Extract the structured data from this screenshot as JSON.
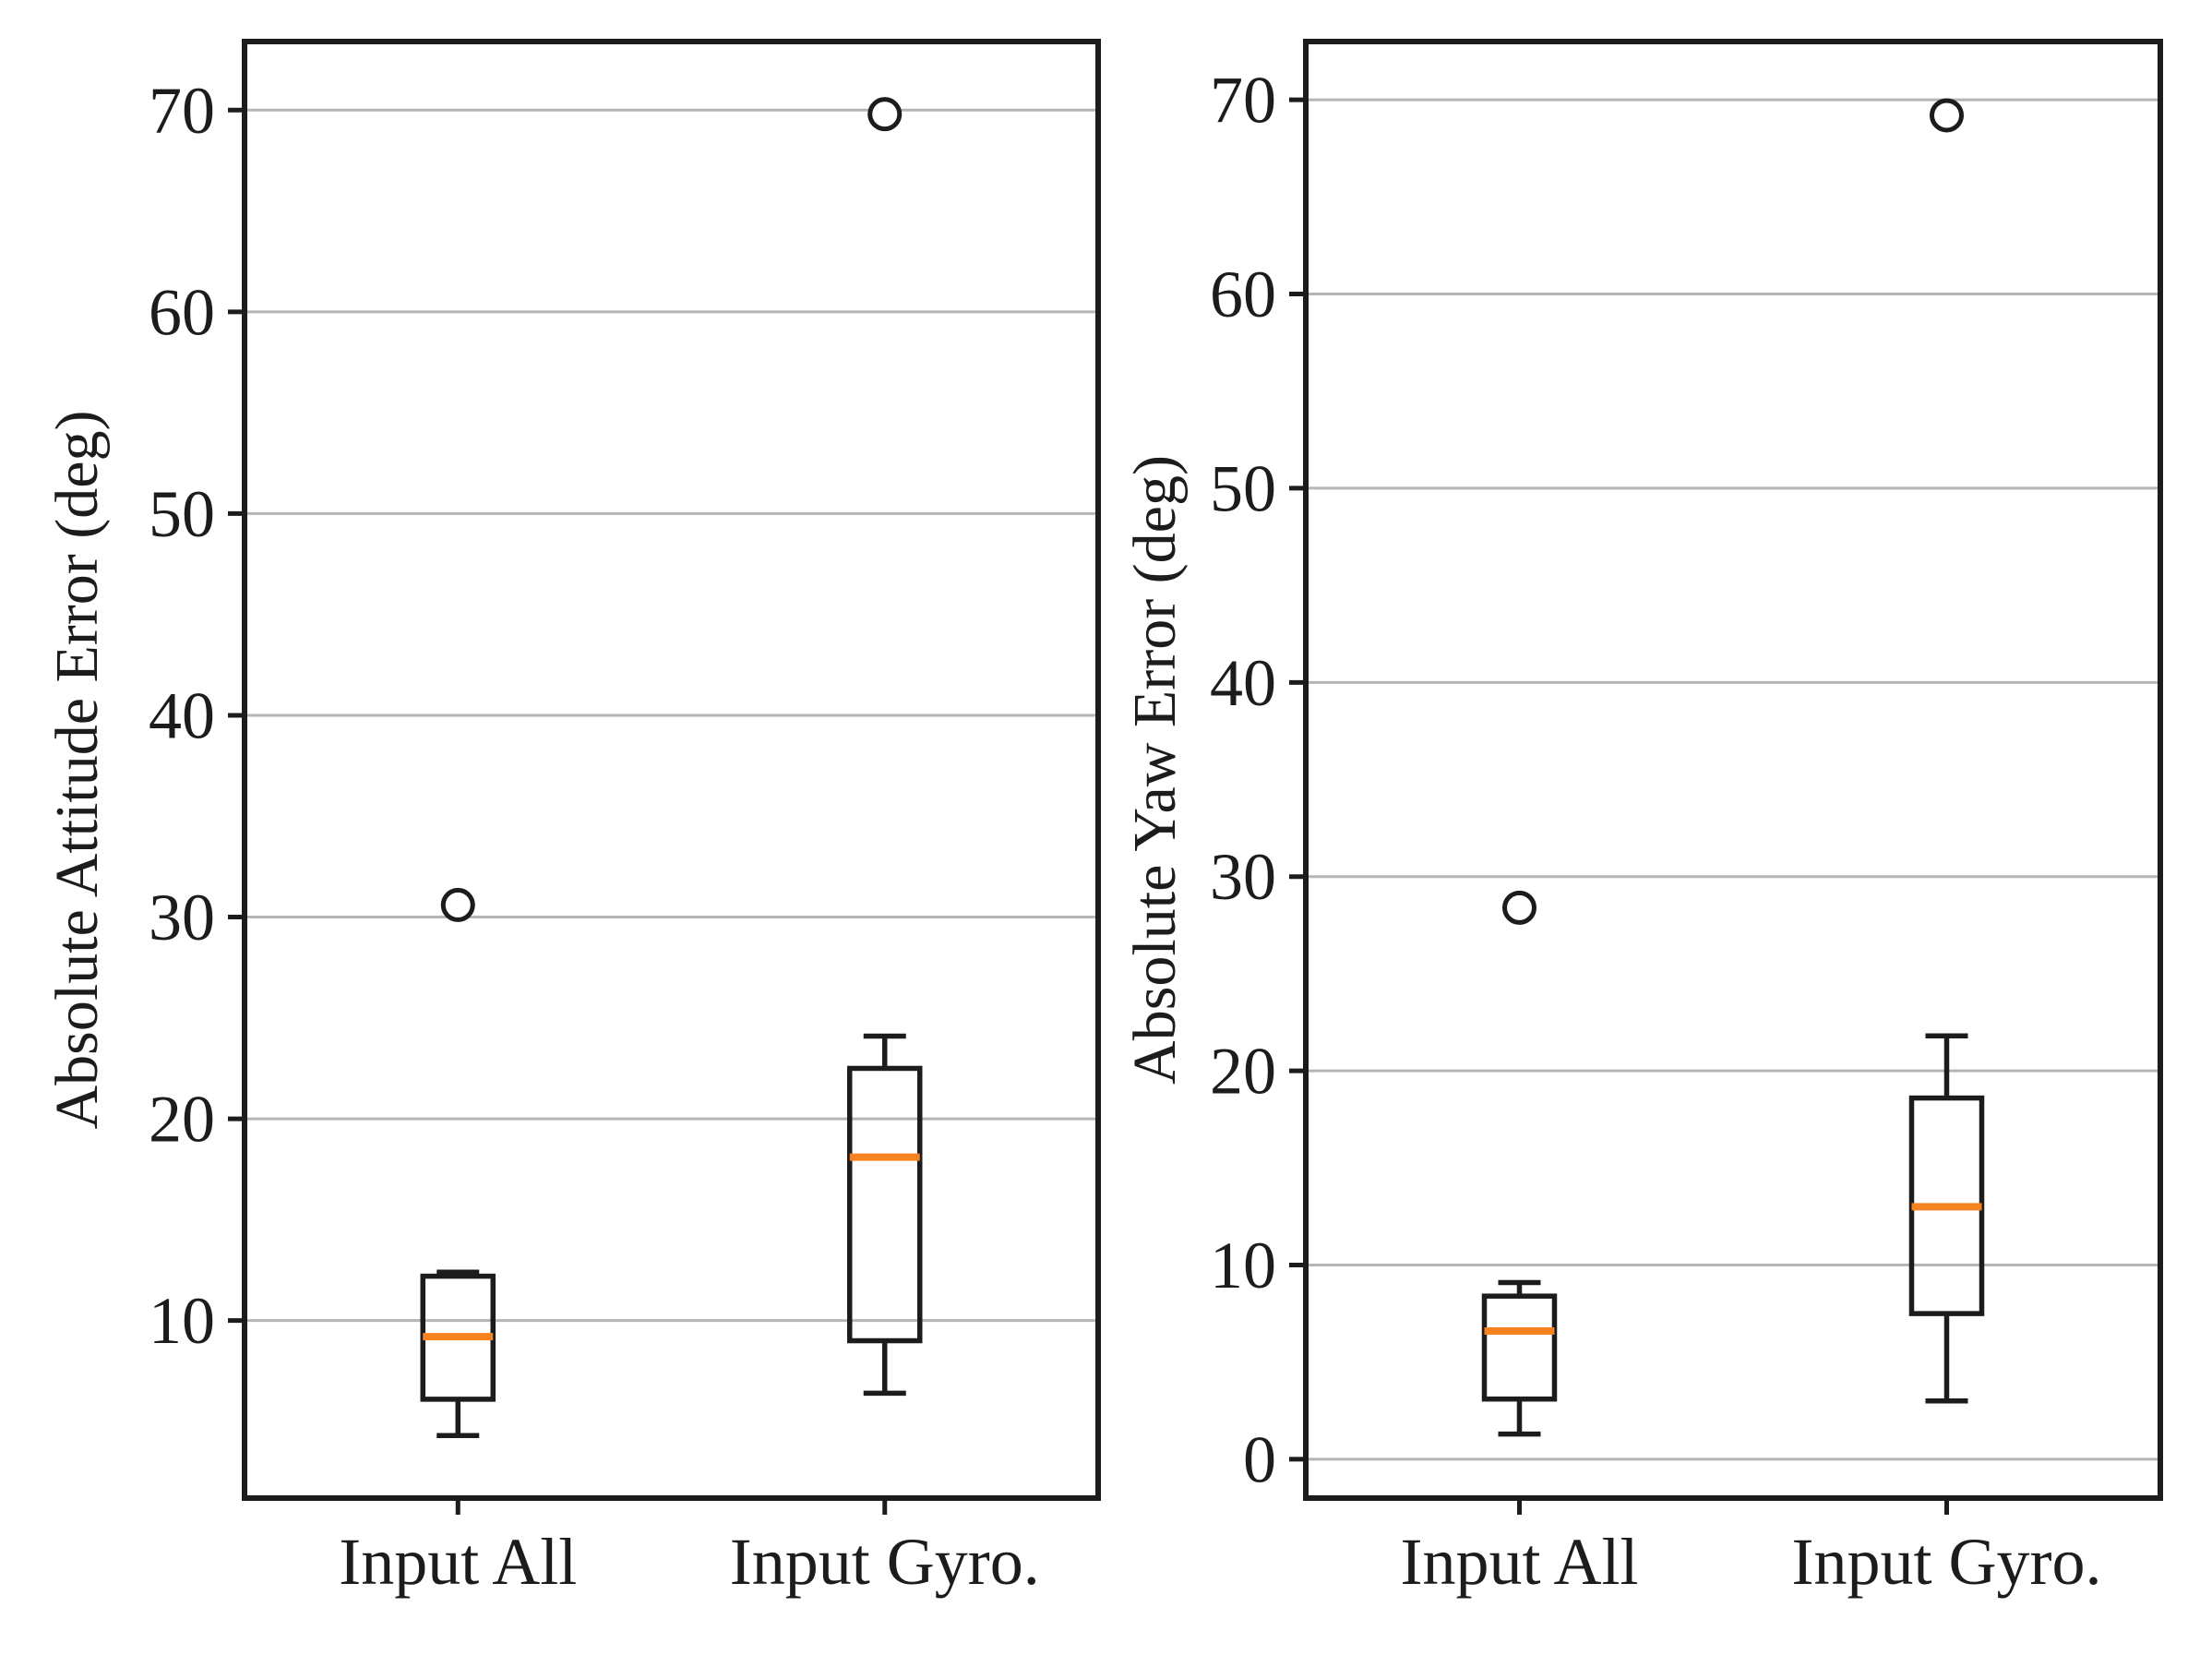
{
  "figure": {
    "background": "#ffffff",
    "axis_color": "#1c1c1c",
    "grid_color": "#b5b5b5",
    "box_fill": "none",
    "outlier_fill": "#ffffff"
  },
  "chart_data": [
    {
      "type": "box",
      "title": "",
      "ylabel": "Absolute Attitude Error (deg)",
      "xlabel": "",
      "categories": [
        "Input All",
        "Input Gyro."
      ],
      "ylim": [
        1.2,
        73.4
      ],
      "yticks": [
        10,
        20,
        30,
        40,
        50,
        60,
        70
      ],
      "grid": "horizontal",
      "legend": "none",
      "median_color": "#f78320",
      "series": [
        {
          "name": "Input All",
          "whisker_low": 4.3,
          "q1": 6.1,
          "median": 9.2,
          "q3": 12.2,
          "whisker_high": 12.4,
          "outliers": [
            30.6
          ]
        },
        {
          "name": "Input Gyro.",
          "whisker_low": 6.4,
          "q1": 9.0,
          "median": 18.1,
          "q3": 22.5,
          "whisker_high": 24.1,
          "outliers": [
            69.8
          ]
        }
      ]
    },
    {
      "type": "box",
      "title": "",
      "ylabel": "Absolute Yaw Error (deg)",
      "xlabel": "",
      "categories": [
        "Input All",
        "Input Gyro."
      ],
      "ylim": [
        -2.0,
        73.0
      ],
      "yticks": [
        0,
        10,
        20,
        30,
        40,
        50,
        60,
        70
      ],
      "grid": "horizontal",
      "legend": "none",
      "median_color": "#f78320",
      "series": [
        {
          "name": "Input All",
          "whisker_low": 1.3,
          "q1": 3.1,
          "median": 6.6,
          "q3": 8.4,
          "whisker_high": 9.1,
          "outliers": [
            28.4
          ]
        },
        {
          "name": "Input Gyro.",
          "whisker_low": 3.0,
          "q1": 7.5,
          "median": 13.0,
          "q3": 18.6,
          "whisker_high": 21.8,
          "outliers": [
            69.2
          ]
        }
      ]
    }
  ]
}
